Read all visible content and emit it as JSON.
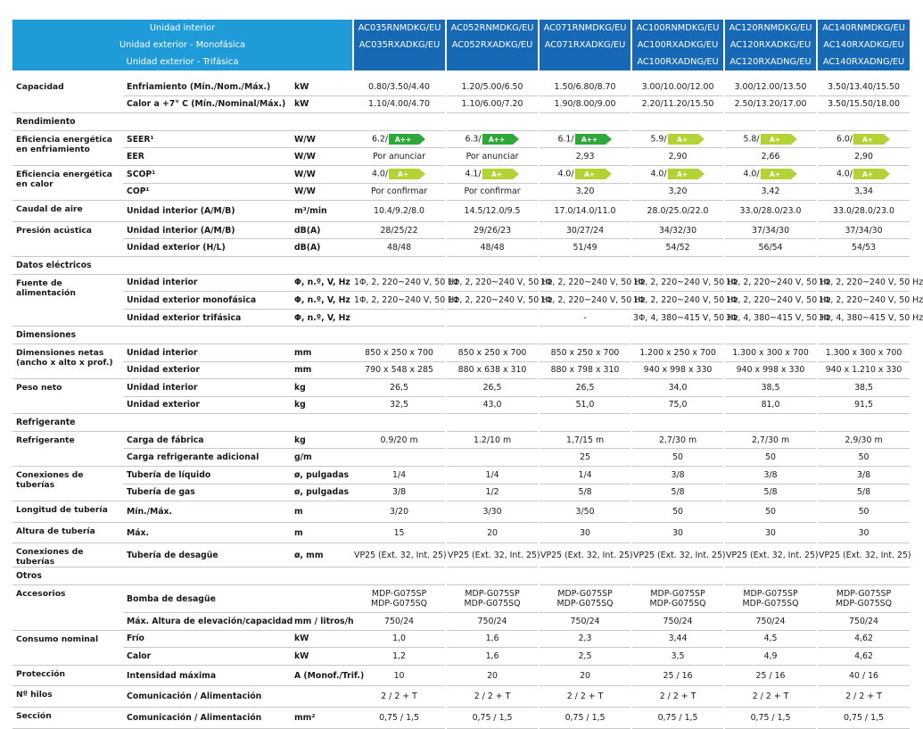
{
  "header": {
    "labels": [
      "Unidad interior",
      "Unidad exterior - Monofásica",
      "Unidad exterior - Trifásica"
    ],
    "models": [
      [
        "AC035RNMDKG/EU",
        "AC035RXADKG/EU"
      ],
      [
        "AC052RNMDKG/EU",
        "AC052RXADKG/EU"
      ],
      [
        "AC071RNMDKG/EU",
        "AC071RXADKG/EU"
      ],
      [
        "AC100RNMDKG/EU",
        "AC100RXADKG/EU",
        "AC100RXADNG/EU"
      ],
      [
        "AC120RNMDKG/EU",
        "AC120RXADKG/EU",
        "AC120RXADNG/EU"
      ],
      [
        "AC140RNMDKG/EU",
        "AC140RXADKG/EU",
        "AC140RXADNG/EU"
      ]
    ]
  },
  "rows": [
    {
      "group": "Capacidad",
      "label": "Enfriamiento (Mín./Nom./Máx.)",
      "unit": "kW",
      "values": [
        "0.80/3.50/4.40",
        "1.20/5.00/6.50",
        "1.50/6.80/8.70",
        "3.00/10.00/12.00",
        "3.00/12.00/13.50",
        "3.50/13.40/15.50"
      ]
    },
    {
      "label": "Calor a +7° C (Mín./Nominal/Máx.)",
      "unit": "kW",
      "values": [
        "1.10/4.00/4.70",
        "1.10/6.00/7.20",
        "1.90/8.00/9.00",
        "2.20/11.20/15.50",
        "2.50/13.20/17.00",
        "3.50/15.50/18.00"
      ]
    },
    {
      "section": "Rendimiento"
    },
    {
      "group": "Eficiencia energética en enfriamiento",
      "label": "SEER¹",
      "unit": "W/W",
      "values": [
        "6.2/",
        "6.3/",
        "6.1/",
        "5.9/",
        "5.8/",
        "6.0/"
      ],
      "badges": [
        "A++",
        "A++",
        "A++",
        "A+",
        "A+",
        "A+"
      ]
    },
    {
      "label": "EER",
      "unit": "W/W",
      "values": [
        "Por anunciar",
        "Por anunciar",
        "2,93",
        "2,90",
        "2,66",
        "2,90"
      ]
    },
    {
      "group": "Eficiencia energética en calor",
      "label": "SCOP¹",
      "unit": "W/W",
      "values": [
        "4.0/",
        "4.1/",
        "4.0/",
        "4.0/",
        "4.0/",
        "4.0/"
      ],
      "badges": [
        "A+",
        "A+",
        "A+",
        "A+",
        "A+",
        "A+"
      ]
    },
    {
      "label": "COP¹",
      "unit": "W/W",
      "values": [
        "Por confirmar",
        "Por confirmar",
        "3,20",
        "3,20",
        "3,42",
        "3,34"
      ]
    },
    {
      "group": "Caudal de aire",
      "label": "Unidad interior (A/M/B)",
      "unit": "m³/min",
      "values": [
        "10.4/9.2/8.0",
        "14.5/12.0/9.5",
        "17.0/14.0/11.0",
        "28.0/25.0/22.0",
        "33.0/28.0/23.0",
        "33.0/28.0/23.0"
      ]
    },
    {
      "group": "Presión acústica",
      "label": "Unidad interior (A/M/B)",
      "unit": "dB(A)",
      "values": [
        "28/25/22",
        "29/26/23",
        "30/27/24",
        "34/32/30",
        "37/34/30",
        "37/34/30"
      ]
    },
    {
      "label": "Unidad exterior (H/L)",
      "unit": "dB(A)",
      "values": [
        "48/48",
        "48/48",
        "51/49",
        "54/52",
        "56/54",
        "54/53"
      ]
    },
    {
      "section": "Datos eléctricos"
    },
    {
      "group": "Fuente de alimentación",
      "label": "Unidad interior",
      "unit": "Φ, n.º, V, Hz",
      "values": [
        "1Φ, 2, 220~240 V, 50 Hz",
        "1Φ, 2, 220~240 V, 50 Hz",
        "1Φ, 2, 220~240 V, 50 Hz",
        "1Φ, 2, 220~240 V, 50 Hz",
        "1Φ, 2, 220~240 V, 50 Hz",
        "1Φ, 2, 220~240 V, 50 Hz"
      ]
    },
    {
      "label": "Unidad exterior monofásica",
      "unit": "Φ, n.º, V, Hz",
      "values": [
        "1Φ, 2, 220~240 V, 50 Hz",
        "1Φ, 2, 220~240 V, 50 Hz",
        "1Φ, 2, 220~240 V, 50 Hz",
        "1Φ, 2, 220~240 V, 50 Hz",
        "1Φ, 2, 220~240 V, 50 Hz",
        "1Φ, 2, 220~240 V, 50 Hz"
      ]
    },
    {
      "label": "Unidad exterior trifásica",
      "unit": "Φ, n.º, V, Hz",
      "values": [
        null,
        null,
        "-",
        "3Φ, 4, 380~415 V, 50 Hz",
        "3Φ, 4, 380~415 V, 50 Hz",
        "3Φ, 4, 380~415 V, 50 Hz"
      ]
    },
    {
      "section": "Dimensiones"
    },
    {
      "group": "Dimensiones netas (ancho x alto x prof.)",
      "label": "Unidad interior",
      "unit": "mm",
      "values": [
        "850 x 250 x 700",
        "850 x 250 x 700",
        "850 x 250 x 700",
        "1.200 x 250 x 700",
        "1.300 x 300 x 700",
        "1.300 x 300 x 700"
      ]
    },
    {
      "label": "Unidad exterior",
      "unit": "mm",
      "values": [
        "790 x 548 x 285",
        "880 x 638 x 310",
        "880 x 798 x 310",
        "940 x 998 x 330",
        "940 x 998 x 330",
        "940 x 1.210 x 330"
      ]
    },
    {
      "group": "Peso neto",
      "label": "Unidad interior",
      "unit": "kg",
      "values": [
        "26,5",
        "26,5",
        "26,5",
        "34,0",
        "38,5",
        "38,5"
      ]
    },
    {
      "label": "Unidad exterior",
      "unit": "kg",
      "values": [
        "32,5",
        "43,0",
        "51,0",
        "75,0",
        "81,0",
        "91,5"
      ]
    },
    {
      "section": "Refrigerante"
    },
    {
      "group": "Refrigerante",
      "label": "Carga de fábrica",
      "unit": "kg",
      "values": [
        "0.9/20 m",
        "1.2/10 m",
        "1,7/15 m",
        "2,7/30 m",
        "2,7/30 m",
        "2,9/30 m"
      ]
    },
    {
      "label": "Carga refrigerante adicional",
      "unit": "g/m",
      "values": [
        null,
        null,
        "25",
        "50",
        "50",
        "50"
      ]
    },
    {
      "group": "Conexiones de tuberías",
      "label": "Tubería de líquido",
      "unit": "ø, pulgadas",
      "values": [
        "1/4",
        "1/4",
        "1/4",
        "3/8",
        "3/8",
        "3/8"
      ]
    },
    {
      "label": "Tubería de gas",
      "unit": "ø, pulgadas",
      "values": [
        "3/8",
        "1/2",
        "5/8",
        "5/8",
        "5/8",
        "5/8"
      ]
    },
    {
      "group": "Longitud de tubería",
      "label": "Mín./Máx.",
      "unit": "m",
      "values": [
        "3/20",
        "3/30",
        "3/50",
        "50",
        "50",
        "50"
      ]
    },
    {
      "group": "Altura de tubería",
      "label": "Máx.",
      "unit": "m",
      "values": [
        "15",
        "20",
        "30",
        "30",
        "30",
        "30"
      ]
    },
    {
      "group": "Conexiones de tuberías",
      "label": "Tubería de desagüe",
      "unit": "ø, mm",
      "values": [
        "VP25 (Ext. 32, Int. 25)",
        "VP25 (Ext. 32, Int. 25)",
        "VP25 (Ext. 32, Int. 25)",
        "VP25 (Ext. 32, Int. 25)",
        "VP25 (Ext. 32, Int. 25)",
        "VP25 (Ext. 32, Int. 25)"
      ]
    },
    {
      "section": "Otros"
    },
    {
      "group": "Accesorios",
      "label": "Bomba de desagüe",
      "values": [
        [
          "MDP-G075SP",
          "MDP-G075SQ"
        ],
        [
          "MDP-G075SP",
          "MDP-G075SQ"
        ],
        [
          "MDP-G075SP",
          "MDP-G075SQ"
        ],
        [
          "MDP-G075SP",
          "MDP-G075SQ"
        ],
        [
          "MDP-G075SP",
          "MDP-G075SQ"
        ],
        [
          "MDP-G075SP",
          "MDP-G075SQ"
        ]
      ]
    },
    {
      "label": "Máx. Altura de elevación/capacidad",
      "unit": "mm / litros/h",
      "values": [
        "750/24",
        "750/24",
        "750/24",
        "750/24",
        "750/24",
        "750/24"
      ]
    },
    {
      "group": "Consumo nominal",
      "label": "Frío",
      "unit": "kW",
      "values": [
        "1,0",
        "1,6",
        "2,3",
        "3,44",
        "4,5",
        "4,62"
      ]
    },
    {
      "label": "Calor",
      "unit": "kW",
      "values": [
        "1,2",
        "1,6",
        "2,5",
        "3,5",
        "4,9",
        "4,62"
      ]
    },
    {
      "group": "Protección",
      "label": "Intensidad máxima",
      "unit": "A (Monof./Trif.)",
      "values": [
        "10",
        "20",
        "20",
        "25 / 16",
        "25 / 16",
        "40 / 16"
      ]
    },
    {
      "group": "Nº hilos",
      "label": "Comunicación / Alimentación",
      "values": [
        "2 / 2 + T",
        "2 / 2 + T",
        "2 / 2 + T",
        "2 / 2 + T",
        "2 / 2 + T",
        "2 / 2 + T"
      ]
    },
    {
      "group": "Sección",
      "label": "Comunicación / Alimentación",
      "unit": "mm²",
      "values": [
        "0,75 / 1,5",
        "0,75 / 1,5",
        "0,75 / 1,5",
        "0,75 / 1,5",
        "0,75 / 1,5",
        "0,75 / 1,5"
      ]
    }
  ]
}
